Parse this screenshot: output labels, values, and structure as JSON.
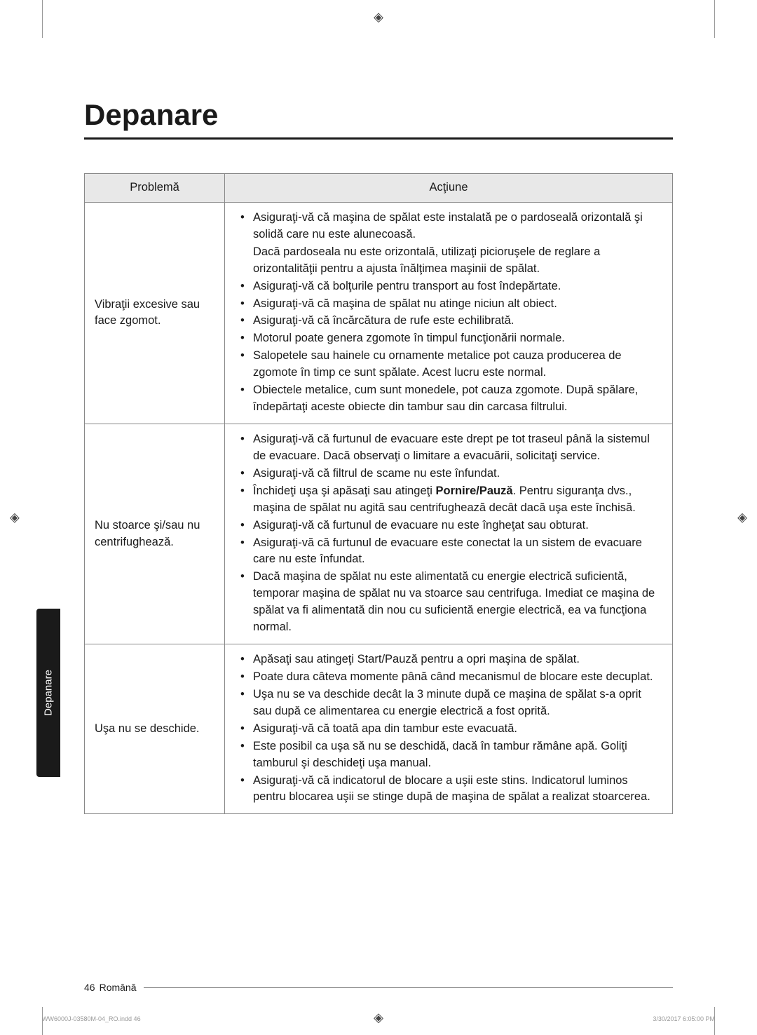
{
  "title": "Depanare",
  "side_tab": "Depanare",
  "table": {
    "headers": [
      "Problemă",
      "Acţiune"
    ],
    "rows": [
      {
        "problem": "Vibraţii excesive sau face zgomot.",
        "actions": [
          {
            "text": "Asiguraţi-vă că maşina de spălat este instalată pe o pardoseală orizontală şi solidă care nu este alunecoasă."
          },
          {
            "sub": "Dacă pardoseala nu este orizontală, utilizaţi picioruşele de reglare a orizontalităţii pentru a ajusta înălţimea maşinii de spălat."
          },
          {
            "text": "Asiguraţi-vă că bolţurile pentru transport au fost îndepărtate."
          },
          {
            "text": "Asiguraţi-vă că maşina de spălat nu atinge niciun alt obiect."
          },
          {
            "text": "Asiguraţi-vă că încărcătura de rufe este echilibrată."
          },
          {
            "text": "Motorul poate genera zgomote în timpul funcţionării normale."
          },
          {
            "text": "Salopetele sau hainele cu ornamente metalice pot cauza producerea de zgomote în timp ce sunt spălate. Acest lucru este normal."
          },
          {
            "text": "Obiectele metalice, cum sunt monedele, pot cauza zgomote. După spălare, îndepărtaţi aceste obiecte din tambur sau din carcasa filtrului."
          }
        ]
      },
      {
        "problem": "Nu stoarce şi/sau nu centrifughează.",
        "actions": [
          {
            "text": "Asiguraţi-vă că furtunul de evacuare este drept pe tot traseul până la sistemul de evacuare. Dacă observaţi o limitare a evacuării, solicitaţi service."
          },
          {
            "text": "Asiguraţi-vă că filtrul de scame nu este înfundat."
          },
          {
            "text_pre": "Închideţi uşa şi apăsaţi sau atingeţi ",
            "bold": "Pornire/Pauză",
            "text_post": ". Pentru siguranţa dvs., maşina de spălat nu agită sau centrifughează decât dacă uşa este închisă."
          },
          {
            "text": "Asiguraţi-vă că furtunul de evacuare nu este îngheţat sau obturat."
          },
          {
            "text": "Asiguraţi-vă că furtunul de evacuare este conectat la un sistem de evacuare care nu este înfundat."
          },
          {
            "text": "Dacă maşina de spălat nu este alimentată cu energie electrică suficientă, temporar maşina de spălat nu va stoarce sau centrifuga. Imediat ce maşina de spălat va fi alimentată din nou cu suficientă energie electrică, ea va funcţiona normal."
          }
        ]
      },
      {
        "problem": "Uşa nu se deschide.",
        "actions": [
          {
            "text": "Apăsaţi sau atingeţi Start/Pauză pentru a opri maşina de spălat."
          },
          {
            "text": "Poate dura câteva momente până când mecanismul de blocare este decuplat."
          },
          {
            "text": "Uşa nu se va deschide decât la 3 minute după ce maşina de spălat s-a oprit sau după ce alimentarea cu energie electrică a fost oprită."
          },
          {
            "text": "Asiguraţi-vă că toată apa din tambur este evacuată."
          },
          {
            "text": "Este posibil ca uşa să nu se deschidă, dacă în tambur rămâne apă. Goliţi tamburul şi deschideţi uşa manual."
          },
          {
            "text": "Asiguraţi-vă că indicatorul de blocare a uşii este stins. Indicatorul luminos pentru blocarea uşii se stinge după de maşina de spălat a realizat stoarcerea."
          }
        ]
      }
    ]
  },
  "footer": {
    "page_num": "46",
    "language": "Română"
  },
  "print_footer": {
    "left": "WW6000J-03580M-04_RO.indd   46",
    "right": "3/30/2017   6:05:00 PM"
  }
}
